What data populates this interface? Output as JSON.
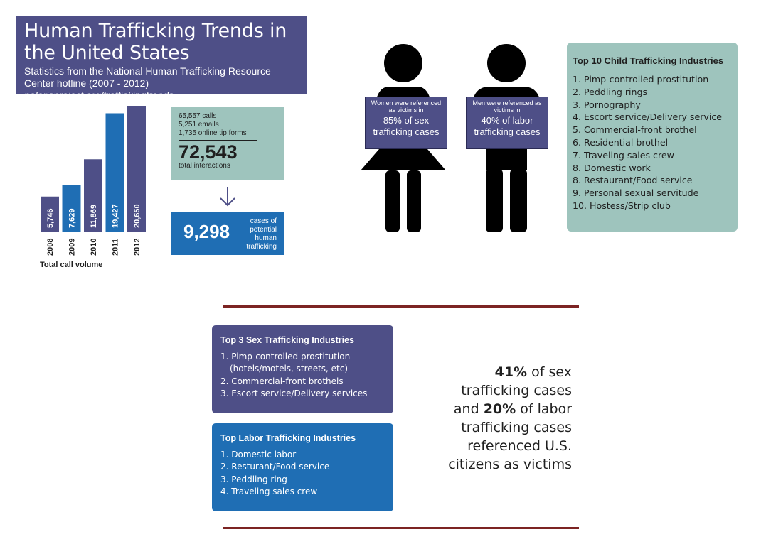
{
  "header": {
    "title": "Human Trafficking Trends in the United States",
    "subtitle": "Statistics from the National Human Trafficking Resource Center hotline (2007 - 2012)",
    "url": "polarisproject.org/traffickingtrends"
  },
  "chart_data": {
    "type": "bar",
    "categories": [
      "2008",
      "2009",
      "2010",
      "2011",
      "2012"
    ],
    "values": [
      5746,
      7629,
      11869,
      19427,
      20650
    ],
    "value_labels": [
      "5,746",
      "7,629",
      "11,869",
      "19,427",
      "20,650"
    ],
    "xlabel": "Total call volume",
    "colors": [
      "#4e4f87",
      "#1f6eb4",
      "#4e4f87",
      "#1f6eb4",
      "#4e4f87"
    ]
  },
  "interactions": {
    "calls": "65,557 calls",
    "emails": "5,251 emails",
    "tips": "1,735 online tip forms",
    "total": "72,543",
    "total_label": "total interactions"
  },
  "cases": {
    "number": "9,298",
    "label": "cases of potential human trafficking"
  },
  "women": {
    "line1": "Women were referenced as victims in",
    "line2": "85% of sex trafficking cases"
  },
  "men": {
    "line1": "Men were referenced as victims in",
    "line2": "40% of labor trafficking cases"
  },
  "child_industries": {
    "title": "Top 10 Child Trafficking Industries",
    "items": [
      "1. Pimp-controlled prostitution",
      "2. Peddling rings",
      "3. Pornography",
      "4. Escort service/Delivery service",
      "5. Commercial-front brothel",
      "6. Residential brothel",
      "7. Traveling sales crew",
      "8. Domestic work",
      "8. Restaurant/Food service",
      "9. Personal sexual servitude",
      "10. Hostess/Strip club"
    ]
  },
  "sex_industries": {
    "title": "Top 3 Sex Trafficking Industries",
    "items": [
      "1. Pimp-controlled prostitution",
      "(hotels/motels, streets, etc)",
      "2. Commercial-front brothels",
      "3. Escort service/Delivery services"
    ]
  },
  "labor_industries": {
    "title": "Top Labor Trafficking Industries",
    "items": [
      "1. Domestic labor",
      "2. Resturant/Food service",
      "3. Peddling ring",
      "4. Traveling sales crew"
    ]
  },
  "stat": {
    "pct_sex": "41%",
    "line1_rest": "of sex",
    "line2": "trafficking cases",
    "line3_pre": "and",
    "pct_labor": "20%",
    "line3_rest": "of labor",
    "line4": "trafficking cases",
    "line5": "referenced U.S.",
    "line6": "citizens as victims"
  }
}
